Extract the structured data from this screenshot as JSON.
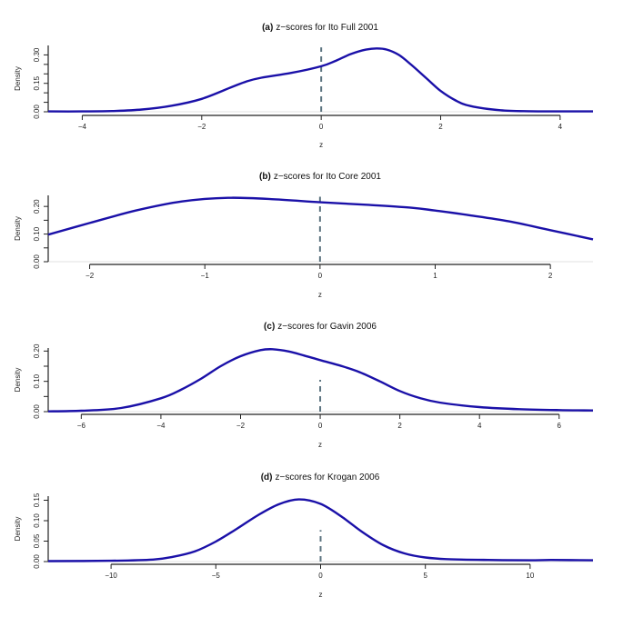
{
  "chart_data": [
    {
      "type": "line",
      "panel_tag": "(a)",
      "title": "z−scores for Ito Full 2001",
      "xlabel": "z",
      "ylabel": "Density",
      "xlim": [
        -4.57,
        4.55
      ],
      "ylim": [
        0,
        0.35
      ],
      "xticks": [
        -4,
        -2,
        0,
        2,
        4
      ],
      "xtick_labels": [
        "−4",
        "−2",
        "0",
        "2",
        "4"
      ],
      "yticks": [
        0,
        0.05,
        0.1,
        0.15,
        0.2,
        0.25,
        0.3
      ],
      "ytick_labels": [
        "0.00",
        "",
        "",
        "0.15",
        "",
        "",
        "0.30"
      ],
      "reference_line": {
        "x": 0,
        "ymax": 0.34,
        "style": "dashed"
      },
      "series": [
        {
          "name": "density",
          "x": [
            -4.57,
            -4.0,
            -3.5,
            -3.0,
            -2.5,
            -2.0,
            -1.5,
            -1.25,
            -1.0,
            -0.5,
            0.0,
            0.25,
            0.5,
            0.75,
            0.93,
            1.1,
            1.3,
            1.5,
            1.75,
            2.0,
            2.25,
            2.5,
            3.0,
            3.5,
            4.0,
            4.55
          ],
          "y": [
            0.002,
            0.002,
            0.004,
            0.012,
            0.032,
            0.068,
            0.13,
            0.16,
            0.18,
            0.205,
            0.24,
            0.27,
            0.305,
            0.328,
            0.334,
            0.328,
            0.3,
            0.25,
            0.18,
            0.11,
            0.06,
            0.03,
            0.008,
            0.003,
            0.002,
            0.002
          ]
        }
      ],
      "grid": false
    },
    {
      "type": "line",
      "panel_tag": "(b)",
      "title": "z−scores for Ito Core 2001",
      "xlabel": "z",
      "ylabel": "Density",
      "xlim": [
        -2.36,
        2.37
      ],
      "ylim": [
        0,
        0.24
      ],
      "xticks": [
        -2,
        -1,
        0,
        1,
        2
      ],
      "xtick_labels": [
        "−2",
        "−1",
        "0",
        "1",
        "2"
      ],
      "yticks": [
        0,
        0.05,
        0.1,
        0.15,
        0.2
      ],
      "ytick_labels": [
        "0.00",
        "",
        "0.10",
        "",
        "0.20"
      ],
      "reference_line": {
        "x": 0,
        "ymax": 0.235,
        "style": "dashed"
      },
      "series": [
        {
          "name": "density",
          "x": [
            -2.36,
            -2.0,
            -1.6,
            -1.2,
            -0.8,
            -0.4,
            0.0,
            0.4,
            0.8,
            1.0,
            1.3,
            1.64,
            2.0,
            2.37
          ],
          "y": [
            0.098,
            0.14,
            0.185,
            0.218,
            0.231,
            0.226,
            0.215,
            0.206,
            0.195,
            0.185,
            0.168,
            0.146,
            0.114,
            0.081
          ]
        }
      ],
      "grid": false
    },
    {
      "type": "line",
      "panel_tag": "(c)",
      "title": "z−scores for Gavin 2006",
      "xlabel": "z",
      "ylabel": "Density",
      "xlim": [
        -6.83,
        6.85
      ],
      "ylim": [
        0,
        0.21
      ],
      "xticks": [
        -6,
        -4,
        -2,
        0,
        2,
        4,
        6
      ],
      "xtick_labels": [
        "−6",
        "−4",
        "−2",
        "0",
        "2",
        "4",
        "6"
      ],
      "yticks": [
        0,
        0.05,
        0.1,
        0.15,
        0.2
      ],
      "ytick_labels": [
        "0.00",
        "",
        "0.10",
        "",
        "0.20"
      ],
      "reference_line": {
        "x": 0,
        "ymax": 0.105,
        "style": "dashed"
      },
      "series": [
        {
          "name": "density",
          "x": [
            -6.83,
            -6.0,
            -5.0,
            -4.0,
            -3.5,
            -3.0,
            -2.5,
            -2.0,
            -1.5,
            -1.2,
            -0.8,
            -0.4,
            0.0,
            0.5,
            1.0,
            1.5,
            2.0,
            2.5,
            3.0,
            4.0,
            5.0,
            6.0,
            6.85
          ],
          "y": [
            0.001,
            0.003,
            0.012,
            0.044,
            0.072,
            0.108,
            0.15,
            0.183,
            0.203,
            0.206,
            0.199,
            0.185,
            0.17,
            0.152,
            0.13,
            0.1,
            0.068,
            0.045,
            0.03,
            0.015,
            0.008,
            0.005,
            0.004
          ]
        }
      ],
      "grid": false
    },
    {
      "type": "line",
      "panel_tag": "(d)",
      "title": "z−scores for Krogan 2006",
      "xlabel": "z",
      "ylabel": "Density",
      "xlim": [
        -13,
        13
      ],
      "ylim": [
        0,
        0.16
      ],
      "xticks": [
        -10,
        -5,
        0,
        5,
        10
      ],
      "xtick_labels": [
        "−10",
        "−5",
        "0",
        "5",
        "10"
      ],
      "yticks": [
        0,
        0.05,
        0.1,
        0.15
      ],
      "ytick_labels": [
        "0.00",
        "0.05",
        "0.10",
        "0.15"
      ],
      "reference_line": {
        "x": 0,
        "ymax": 0.077,
        "style": "dashed"
      },
      "series": [
        {
          "name": "density",
          "x": [
            -13,
            -10,
            -8,
            -7,
            -6,
            -5,
            -4,
            -3,
            -2,
            -1.04,
            0,
            1,
            2,
            3,
            4,
            5,
            6,
            8,
            10,
            11,
            13
          ],
          "y": [
            0.001,
            0.002,
            0.005,
            0.012,
            0.025,
            0.049,
            0.08,
            0.113,
            0.14,
            0.152,
            0.141,
            0.11,
            0.072,
            0.04,
            0.02,
            0.01,
            0.006,
            0.004,
            0.003,
            0.004,
            0.003
          ]
        }
      ],
      "grid": false
    }
  ],
  "colors": {
    "curve": "#1a10a8",
    "reference_line": "#5c7480",
    "axis": "#222222"
  }
}
